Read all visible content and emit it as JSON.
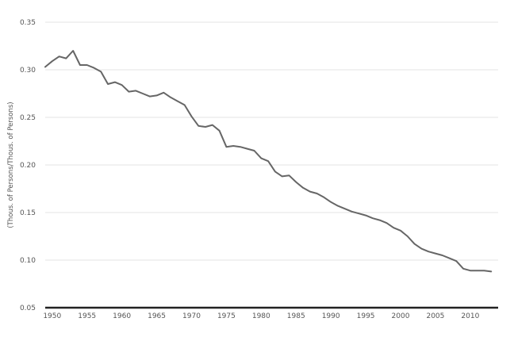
{
  "chart_data": {
    "type": "line",
    "title": "",
    "xlabel": "",
    "ylabel": "(Thous. of Persons/Thous. of Persons)",
    "xlim": [
      1949,
      2014
    ],
    "ylim": [
      0.05,
      0.35
    ],
    "grid": true,
    "x_ticks": [
      1950,
      1955,
      1960,
      1965,
      1970,
      1975,
      1980,
      1985,
      1990,
      1995,
      2000,
      2005,
      2010
    ],
    "y_ticks": [
      0.05,
      0.1,
      0.15,
      0.2,
      0.25,
      0.3,
      0.35
    ],
    "x_tick_labels": [
      "1950",
      "1955",
      "1960",
      "1965",
      "1970",
      "1975",
      "1980",
      "1985",
      "1990",
      "1995",
      "2000",
      "2005",
      "2010"
    ],
    "y_tick_labels": [
      "0.05",
      "0.10",
      "0.15",
      "0.20",
      "0.25",
      "0.30",
      "0.35"
    ],
    "x": [
      1949,
      1950,
      1951,
      1952,
      1953,
      1954,
      1955,
      1956,
      1957,
      1958,
      1959,
      1960,
      1961,
      1962,
      1963,
      1964,
      1965,
      1966,
      1967,
      1968,
      1969,
      1970,
      1971,
      1972,
      1973,
      1974,
      1975,
      1976,
      1977,
      1978,
      1979,
      1980,
      1981,
      1982,
      1983,
      1984,
      1985,
      1986,
      1987,
      1988,
      1989,
      1990,
      1991,
      1992,
      1993,
      1994,
      1995,
      1996,
      1997,
      1998,
      1999,
      2000,
      2001,
      2002,
      2003,
      2004,
      2005,
      2006,
      2007,
      2008,
      2009,
      2010,
      2011,
      2012,
      2013
    ],
    "series": [
      {
        "color": "#666666",
        "values": [
          0.303,
          0.309,
          0.314,
          0.312,
          0.32,
          0.305,
          0.305,
          0.302,
          0.298,
          0.285,
          0.287,
          0.284,
          0.277,
          0.278,
          0.275,
          0.272,
          0.273,
          0.276,
          0.271,
          0.267,
          0.263,
          0.251,
          0.241,
          0.24,
          0.242,
          0.236,
          0.219,
          0.22,
          0.219,
          0.217,
          0.215,
          0.207,
          0.204,
          0.193,
          0.188,
          0.189,
          0.182,
          0.176,
          0.172,
          0.17,
          0.166,
          0.161,
          0.157,
          0.154,
          0.151,
          0.149,
          0.147,
          0.144,
          0.142,
          0.139,
          0.134,
          0.131,
          0.125,
          0.117,
          0.112,
          0.109,
          0.107,
          0.105,
          0.102,
          0.099,
          0.091,
          0.089,
          0.089,
          0.089,
          0.088
        ]
      }
    ]
  }
}
